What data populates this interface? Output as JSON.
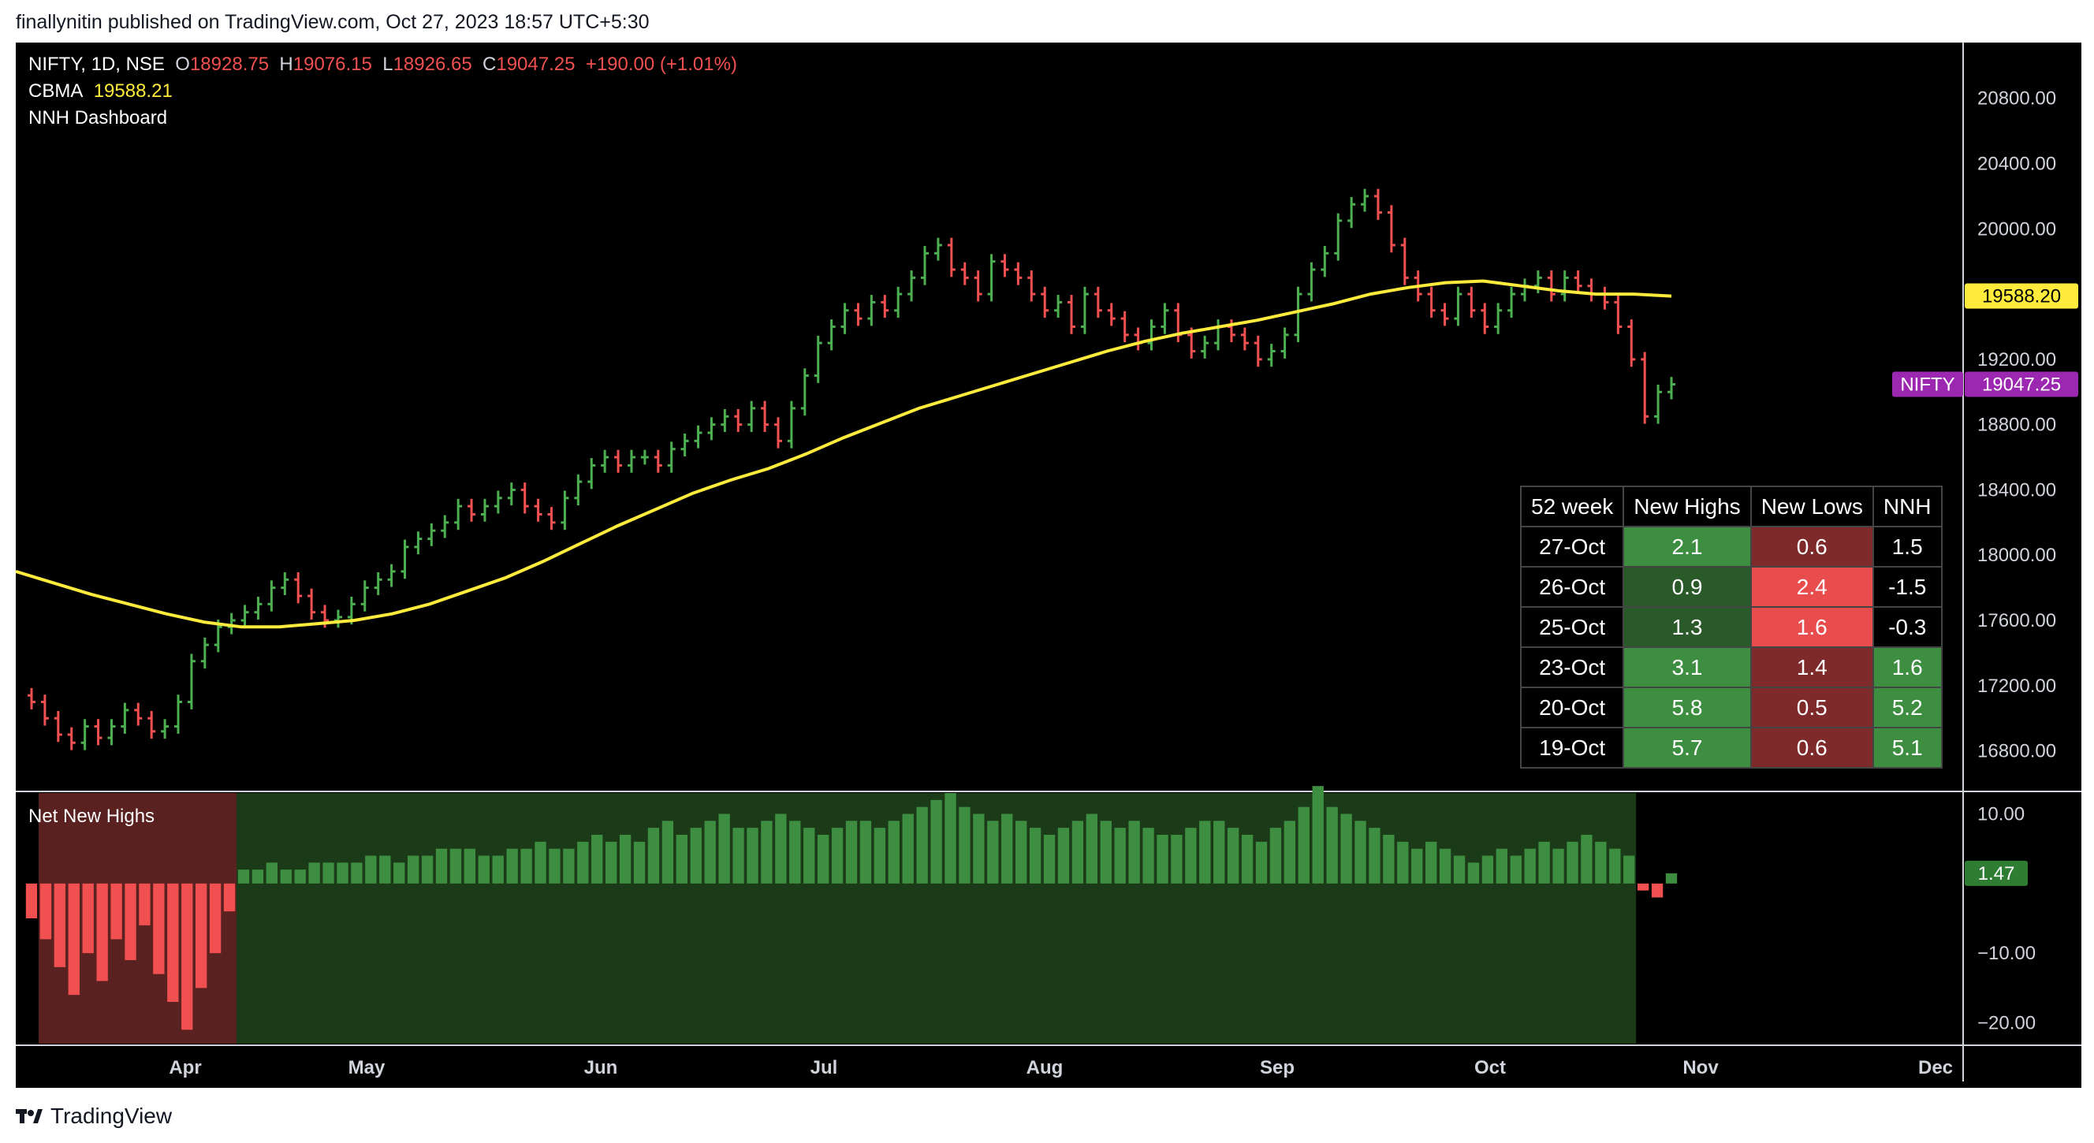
{
  "header": {
    "attribution": "finallynitin published on TradingView.com, Oct 27, 2023 18:57 UTC+5:30"
  },
  "legend": {
    "symbol": "NIFTY, 1D, NSE",
    "o_label": "O",
    "o_value": "18928.75",
    "h_label": "H",
    "h_value": "19076.15",
    "l_label": "L",
    "l_value": "18926.65",
    "c_label": "C",
    "c_value": "19047.25",
    "change": "+190.00 (+1.01%)",
    "indicator_name": "CBMA",
    "indicator_value": "19588.21",
    "dashboard_name": "NNH Dashboard"
  },
  "sub_pane": {
    "title": "Net New Highs",
    "last_value": "1.47"
  },
  "price_labels": {
    "cbma": "19588.20",
    "symbol_tag": "NIFTY",
    "last": "19047.25"
  },
  "colors": {
    "up": "#4caf50",
    "down": "#f05050",
    "neutral": "#ffffff",
    "ma": "#ffeb3b",
    "symbol_tag": "#9c27b0",
    "nnh_up_bg": "#1b3a17",
    "nnh_down_bg": "#5a2121"
  },
  "table": {
    "headers": [
      "52 week",
      "New Highs",
      "New Lows",
      "NNH"
    ],
    "rows": [
      {
        "date": "27-Oct",
        "highs": "2.1",
        "lows": "0.6",
        "nnh": "1.5"
      },
      {
        "date": "26-Oct",
        "highs": "0.9",
        "lows": "2.4",
        "nnh": "-1.5"
      },
      {
        "date": "25-Oct",
        "highs": "1.3",
        "lows": "1.6",
        "nnh": "-0.3"
      },
      {
        "date": "23-Oct",
        "highs": "3.1",
        "lows": "1.4",
        "nnh": "1.6"
      },
      {
        "date": "20-Oct",
        "highs": "5.8",
        "lows": "0.5",
        "nnh": "5.2"
      },
      {
        "date": "19-Oct",
        "highs": "5.7",
        "lows": "0.6",
        "nnh": "5.1"
      }
    ]
  },
  "footer": {
    "brand": "TradingView"
  },
  "chart_data": {
    "type": "bar",
    "price_axis": {
      "ticks": [
        "20800.00",
        "20400.00",
        "20000.00",
        "19200.00",
        "18800.00",
        "18400.00",
        "18000.00",
        "17600.00",
        "17200.00",
        "16800.00"
      ],
      "ylim": [
        16600,
        20900
      ]
    },
    "nnh_axis": {
      "ticks": [
        "10.00",
        "−10.00",
        "−20.00"
      ],
      "ylim": [
        -23,
        13
      ]
    },
    "time_axis": [
      "Apr",
      "May",
      "Jun",
      "Jul",
      "Aug",
      "Sep",
      "Oct",
      "Nov",
      "Dec"
    ],
    "price_series": [
      17100,
      17000,
      16900,
      16850,
      16950,
      16880,
      16950,
      17050,
      17000,
      16920,
      16950,
      17100,
      17350,
      17450,
      17560,
      17600,
      17650,
      17700,
      17800,
      17850,
      17750,
      17650,
      17600,
      17620,
      17700,
      17800,
      17850,
      17900,
      18050,
      18100,
      18150,
      18200,
      18300,
      18250,
      18300,
      18350,
      18400,
      18300,
      18250,
      18200,
      18350,
      18450,
      18550,
      18600,
      18550,
      18600,
      18600,
      18550,
      18650,
      18700,
      18750,
      18800,
      18850,
      18800,
      18900,
      18800,
      18700,
      18900,
      19100,
      19300,
      19400,
      19500,
      19450,
      19550,
      19500,
      19600,
      19700,
      19850,
      19900,
      19750,
      19700,
      19600,
      19800,
      19750,
      19700,
      19600,
      19500,
      19550,
      19400,
      19600,
      19500,
      19450,
      19350,
      19300,
      19400,
      19500,
      19350,
      19250,
      19300,
      19400,
      19350,
      19300,
      19200,
      19250,
      19350,
      19600,
      19750,
      19850,
      20050,
      20150,
      20200,
      20100,
      19900,
      19700,
      19600,
      19500,
      19450,
      19600,
      19500,
      19400,
      19500,
      19600,
      19650,
      19700,
      19600,
      19700,
      19650,
      19600,
      19550,
      19400,
      19200,
      18850,
      19000,
      19047
    ],
    "cbma_series": [
      17900,
      17830,
      17760,
      17700,
      17640,
      17590,
      17560,
      17560,
      17580,
      17600,
      17640,
      17700,
      17780,
      17860,
      17960,
      18070,
      18180,
      18280,
      18380,
      18460,
      18530,
      18620,
      18720,
      18810,
      18900,
      18970,
      19040,
      19110,
      19180,
      19250,
      19310,
      19360,
      19400,
      19440,
      19490,
      19540,
      19600,
      19640,
      19670,
      19680,
      19650,
      19620,
      19600,
      19600,
      19588
    ],
    "nnh_series": [
      -5,
      -8,
      -12,
      -16,
      -10,
      -14,
      -8,
      -11,
      -6,
      -13,
      -17,
      -21,
      -15,
      -10,
      -4,
      2,
      2,
      3,
      2,
      2,
      3,
      3,
      3,
      3,
      4,
      4,
      3,
      4,
      4,
      5,
      5,
      5,
      4,
      4,
      5,
      5,
      6,
      5,
      5,
      6,
      7,
      6,
      7,
      6,
      8,
      9,
      7,
      8,
      9,
      10,
      8,
      8,
      9,
      10,
      9,
      8,
      7,
      8,
      9,
      9,
      8,
      9,
      10,
      11,
      12,
      13,
      11,
      10,
      9,
      10,
      9,
      8,
      7,
      8,
      9,
      10,
      9,
      8,
      9,
      8,
      7,
      7,
      8,
      9,
      9,
      8,
      7,
      6,
      8,
      9,
      11,
      14,
      11,
      10,
      9,
      8,
      7,
      6,
      5,
      6,
      5,
      4,
      3,
      4,
      5,
      4,
      5,
      6,
      5,
      6,
      7,
      6,
      5,
      4,
      -1,
      -2,
      1.47
    ]
  }
}
